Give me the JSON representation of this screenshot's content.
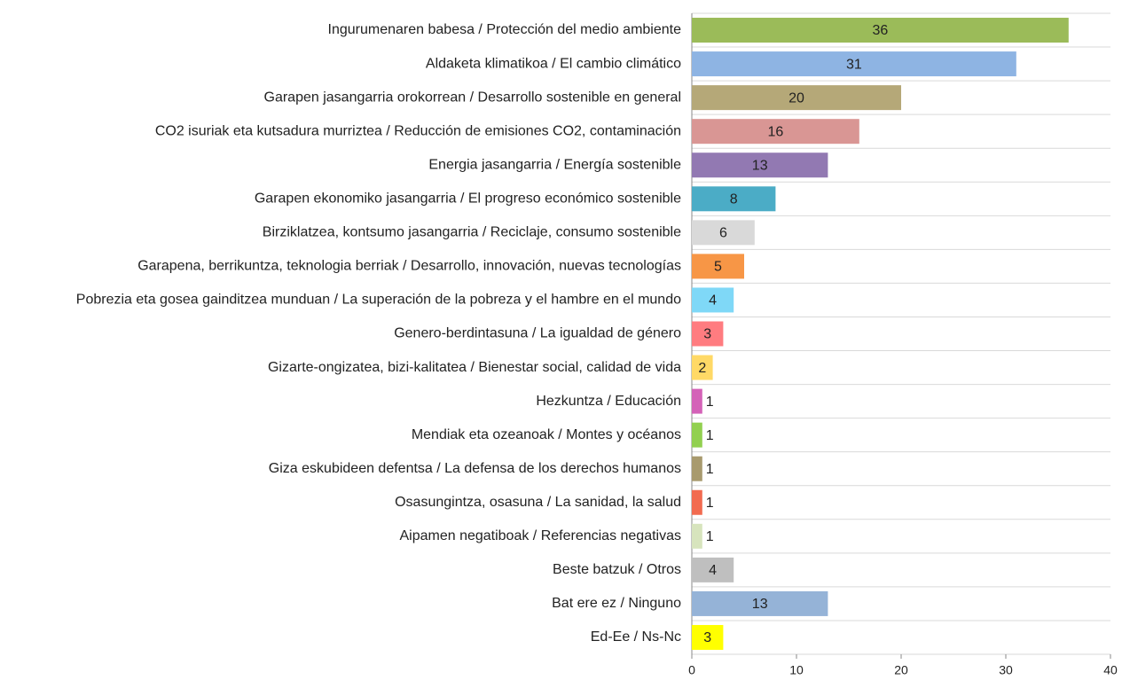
{
  "chart_data": {
    "type": "bar",
    "categories": [
      "Ingurumenaren babesa / Protección del medio ambiente",
      "Aldaketa klimatikoa / El cambio climático",
      "Garapen jasangarria orokorrean / Desarrollo sostenible en general",
      "CO2 isuriak eta kutsadura murriztea / Reducción de emisiones CO2, contaminación",
      "Energia jasangarria / Energía sostenible",
      "Garapen ekonomiko jasangarria / El progreso económico sostenible",
      "Birziklatzea, kontsumo jasangarria / Reciclaje, consumo sostenible",
      "Garapena, berrikuntza, teknologia berriak / Desarrollo, innovación, nuevas tecnologías",
      "Pobrezia eta gosea gainditzea munduan / La superación de la pobreza y el hambre en el mundo",
      "Genero-berdintasuna / La igualdad de género",
      "Gizarte-ongizatea, bizi-kalitatea / Bienestar social, calidad de vida",
      "Hezkuntza / Educación",
      "Mendiak eta ozeanoak / Montes y océanos",
      "Giza eskubideen defentsa / La defensa de los derechos humanos",
      "Osasungintza, osasuna / La sanidad, la salud",
      "Aipamen negatiboak / Referencias negativas",
      "Beste batzuk / Otros",
      "Bat ere ez / Ninguno",
      "Ed-Ee / Ns-Nc"
    ],
    "values": [
      36,
      31,
      20,
      16,
      13,
      8,
      6,
      5,
      4,
      3,
      2,
      1,
      1,
      1,
      1,
      1,
      4,
      13,
      3
    ],
    "colors": [
      "#9bbb59",
      "#8eb4e3",
      "#b5a878",
      "#d99694",
      "#9279b2",
      "#4bacc6",
      "#d9d9d9",
      "#f79646",
      "#7fd8f7",
      "#ff7c80",
      "#ffd966",
      "#d462b8",
      "#92d050",
      "#a89a6e",
      "#f26b50",
      "#d7e4bd",
      "#bfbfbf",
      "#95b3d7",
      "#ffff00"
    ],
    "xlim": [
      0,
      40
    ],
    "xticks": [
      0,
      10,
      20,
      30,
      40
    ]
  }
}
